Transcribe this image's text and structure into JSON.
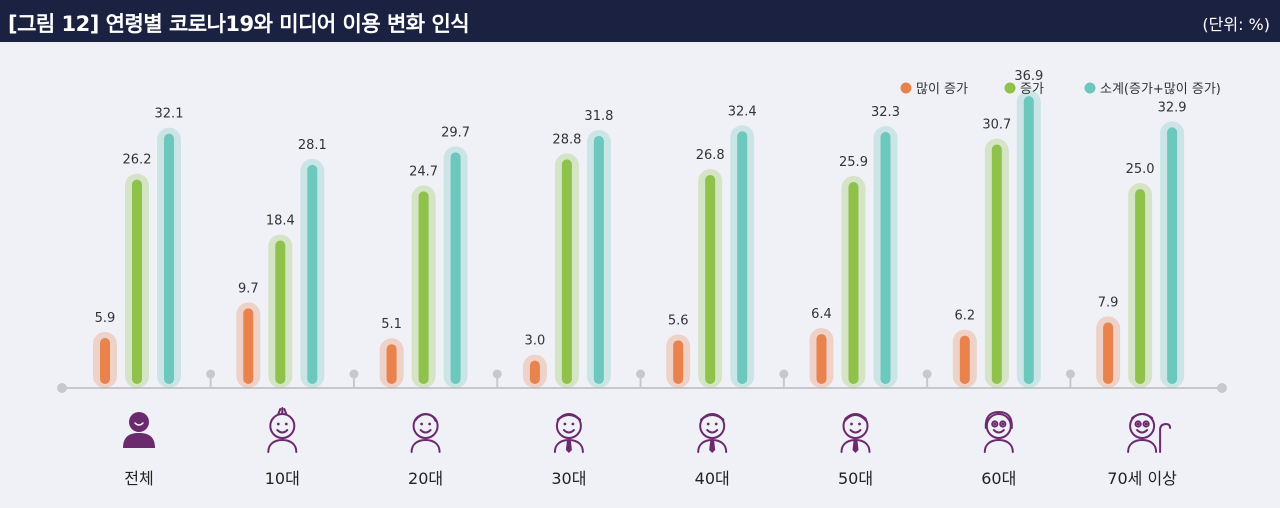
{
  "header": {
    "title": "[그림 12]  연령별 코로나19와 미디어 이용 변화 인식",
    "unit": "(단위: %)"
  },
  "colors": {
    "header_bg": "#1b2140",
    "panel_bg": "#f0f1f7",
    "orange": "#e8834e",
    "green": "#8ec24a",
    "teal": "#6cc7bc",
    "axis": "#c8c8cc",
    "icon": "#6b2a6e"
  },
  "chart_data": {
    "type": "bar",
    "title": "[그림 12]  연령별 코로나19와 미디어 이용 변화 인식",
    "unit": "(단위: %)",
    "legend_position": "top-right",
    "ylim": [
      0,
      40
    ],
    "categories": [
      "전체",
      "10대",
      "20대",
      "30대",
      "40대",
      "50대",
      "60대",
      "70세 이상"
    ],
    "series": [
      {
        "name": "많이 증가",
        "color": "#e8834e",
        "values": [
          5.9,
          9.7,
          5.1,
          3.0,
          5.6,
          6.4,
          6.2,
          7.9
        ]
      },
      {
        "name": "증가",
        "color": "#8ec24a",
        "values": [
          26.2,
          18.4,
          24.7,
          28.8,
          26.8,
          25.9,
          30.7,
          25.0
        ]
      },
      {
        "name": "소계(증가+많이 증가)",
        "color": "#6cc7bc",
        "values": [
          32.1,
          28.1,
          29.7,
          31.8,
          32.4,
          32.3,
          36.9,
          32.9
        ]
      }
    ],
    "icons": [
      "person-filled-icon",
      "child-icon",
      "young-adult-icon",
      "adult-tie-icon",
      "adult-tie-icon",
      "middle-age-icon",
      "senior-icon",
      "elder-cane-icon"
    ]
  }
}
